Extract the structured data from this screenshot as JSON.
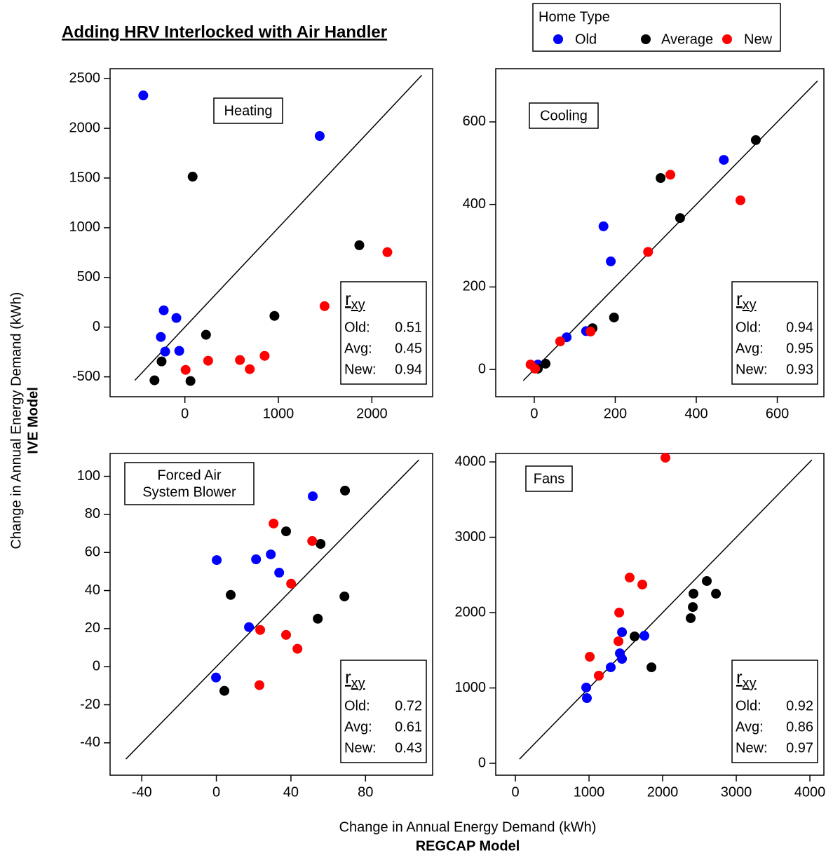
{
  "title": "Adding HRV Interlocked with Air Handler",
  "legend": {
    "title": "Home Type",
    "series": [
      {
        "name": "Old",
        "color": "#0000ff"
      },
      {
        "name": "Average",
        "color": "#000000"
      },
      {
        "name": "New",
        "color": "#ff0000"
      }
    ]
  },
  "x_label": "Change in Annual Energy Demand (kWh)",
  "x_label_model": "REGCAP Model",
  "y_label": "Change in Annual Energy Demand (kWh)",
  "y_label_model": "IVE Model",
  "chart_data": [
    {
      "type": "scatter",
      "label_lines": [
        "Heating"
      ],
      "xlim": [
        -800,
        2650
      ],
      "ylim": [
        -700,
        2600
      ],
      "xticks": [
        0,
        1000,
        2000
      ],
      "yticks": [
        -500,
        0,
        500,
        1000,
        1500,
        2000,
        2500
      ],
      "series": [
        {
          "x": [
            -445,
            1442,
            -226,
            -91,
            -257,
            -211,
            -60
          ],
          "values": [
            2331,
            1923,
            169,
            92,
            -99,
            -246,
            -239
          ]
        },
        {
          "x": [
            83,
            1866,
            958,
            226,
            -249,
            -325,
            60
          ],
          "values": [
            1514,
            824,
            113,
            -77,
            -345,
            -535,
            -542
          ]
        },
        {
          "x": [
            2166,
            1494,
            8,
            249,
            589,
            694,
            853
          ],
          "values": [
            754,
            211,
            -430,
            -338,
            -331,
            -423,
            -289
          ]
        }
      ],
      "stats": {
        "symbol": "r",
        "subscript": "xy",
        "rows": [
          [
            "Old:",
            0.51
          ],
          [
            "Avg:",
            0.45
          ],
          [
            "New:",
            0.94
          ]
        ]
      }
    },
    {
      "type": "scatter",
      "label_lines": [
        "Cooling"
      ],
      "xlim": [
        -95,
        715
      ],
      "ylim": [
        -66,
        729
      ],
      "xticks": [
        0,
        200,
        400,
        600
      ],
      "yticks": [
        0,
        200,
        400,
        600
      ],
      "series": [
        {
          "x": [
            468,
            171,
            189,
            80,
            128,
            9
          ],
          "values": [
            508,
            347,
            262,
            78,
            93,
            12
          ]
        },
        {
          "x": [
            547,
            312,
            360,
            197,
            144,
            28,
            9
          ],
          "values": [
            556,
            464,
            367,
            126,
            100,
            14,
            2
          ]
        },
        {
          "x": [
            336,
            509,
            281,
            139,
            64,
            -9,
            2
          ],
          "values": [
            472,
            410,
            285,
            92,
            68,
            12,
            2
          ]
        }
      ],
      "stats": {
        "symbol": "r",
        "subscript": "xy",
        "rows": [
          [
            "Old:",
            0.94
          ],
          [
            "Avg:",
            0.95
          ],
          [
            "New:",
            0.93
          ]
        ]
      }
    },
    {
      "type": "scatter",
      "label_lines": [
        "Forced Air",
        "System Blower"
      ],
      "xlim": [
        -57,
        116
      ],
      "ylim": [
        -57,
        112
      ],
      "xticks": [
        -40,
        0,
        40,
        80
      ],
      "yticks": [
        -40,
        -20,
        0,
        20,
        40,
        60,
        80,
        100
      ],
      "series": [
        {
          "x": [
            51.7,
            0.2,
            21.3,
            29.2,
            33.7,
            17.5,
            -0.2
          ],
          "values": [
            89.5,
            56,
            56.4,
            59,
            49.4,
            20.8,
            -5.7
          ]
        },
        {
          "x": [
            69,
            37.4,
            55.9,
            7.7,
            68.7,
            54.4,
            4.3
          ],
          "values": [
            92.5,
            71.1,
            64.5,
            37.7,
            36.9,
            25.2,
            -12.7
          ]
        },
        {
          "x": [
            30.7,
            51.4,
            40.1,
            23.5,
            37.4,
            43.5,
            23.1
          ],
          "values": [
            75.2,
            66,
            43.6,
            19.3,
            16.7,
            9.4,
            -9.7
          ]
        }
      ],
      "stats": {
        "symbol": "r",
        "subscript": "xy",
        "rows": [
          [
            "Old:",
            0.72
          ],
          [
            "Avg:",
            0.61
          ],
          [
            "New:",
            0.43
          ]
        ]
      }
    },
    {
      "type": "scatter",
      "label_lines": [
        "Fans"
      ],
      "xlim": [
        -267,
        4190
      ],
      "ylim": [
        -158,
        4112
      ],
      "xticks": [
        0,
        1000,
        2000,
        3000,
        4000
      ],
      "yticks": [
        0,
        1000,
        2000,
        3000,
        4000
      ],
      "series": [
        {
          "x": [
            1448,
            1752,
            1419,
            1448,
            1295,
            962,
            971
          ],
          "values": [
            1740,
            1693,
            1460,
            1386,
            1274,
            1005,
            865
          ]
        },
        {
          "x": [
            2600,
            2724,
            2419,
            2410,
            2381,
            1619,
            1848
          ],
          "values": [
            2419,
            2251,
            2251,
            2074,
            1926,
            1684,
            1274
          ]
        },
        {
          "x": [
            2038,
            1724,
            1552,
            1410,
            1400,
            1010,
            1133
          ],
          "values": [
            4056,
            2372,
            2465,
            2000,
            1619,
            1414,
            1163
          ]
        }
      ],
      "stats": {
        "symbol": "r",
        "subscript": "xy",
        "rows": [
          [
            "Old:",
            0.92
          ],
          [
            "Avg:",
            0.86
          ],
          [
            "New:",
            0.97
          ]
        ]
      }
    }
  ]
}
